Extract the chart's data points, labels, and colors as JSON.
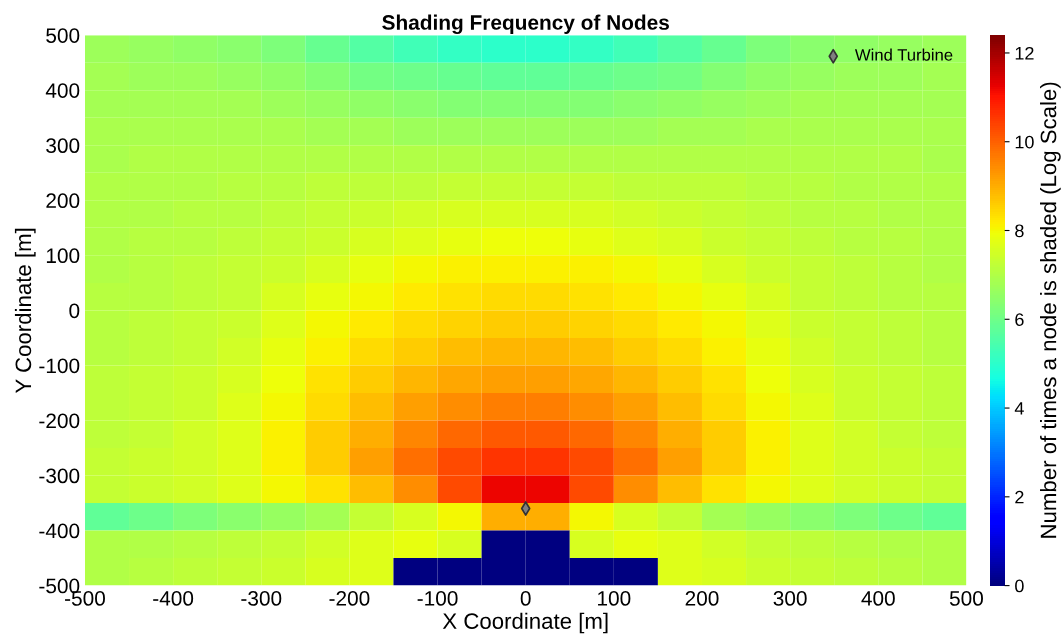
{
  "chart_data": {
    "type": "heatmap",
    "title": "Shading Frequency of Nodes",
    "xlabel": "X Coordinate [m]",
    "ylabel": "Y Coordinate [m]",
    "clabel": "Number of times a node is shaded (Log Scale)",
    "xlim": [
      -500,
      500
    ],
    "ylim": [
      -500,
      500
    ],
    "xticks": [
      -500,
      -400,
      -300,
      -200,
      -100,
      0,
      100,
      200,
      300,
      400,
      500
    ],
    "yticks": [
      -500,
      -400,
      -300,
      -200,
      -100,
      0,
      100,
      200,
      300,
      400,
      500
    ],
    "clim": [
      0,
      12.4
    ],
    "cticks": [
      0,
      2,
      4,
      6,
      8,
      10,
      12
    ],
    "cells": [
      [
        6.7,
        6.6,
        6.5,
        6.4,
        6.2,
        5.9,
        5.6,
        5.3,
        5.1,
        5.0,
        5.0,
        5.1,
        5.3,
        5.6,
        5.9,
        6.2,
        6.4,
        6.5,
        6.6,
        6.7
      ],
      [
        6.8,
        6.7,
        6.7,
        6.6,
        6.5,
        6.3,
        6.1,
        6.0,
        5.9,
        5.8,
        5.8,
        5.9,
        6.0,
        6.1,
        6.3,
        6.5,
        6.6,
        6.7,
        6.7,
        6.8
      ],
      [
        6.8,
        6.8,
        6.8,
        6.8,
        6.7,
        6.6,
        6.5,
        6.4,
        6.3,
        6.3,
        6.3,
        6.3,
        6.4,
        6.5,
        6.6,
        6.7,
        6.8,
        6.8,
        6.8,
        6.8
      ],
      [
        6.9,
        6.9,
        6.9,
        6.9,
        6.9,
        6.8,
        6.8,
        6.7,
        6.7,
        6.7,
        6.7,
        6.7,
        6.7,
        6.8,
        6.8,
        6.9,
        6.9,
        6.9,
        6.9,
        6.9
      ],
      [
        6.9,
        7.0,
        7.0,
        7.0,
        7.0,
        7.0,
        7.0,
        7.0,
        7.0,
        7.0,
        7.0,
        7.0,
        7.0,
        7.0,
        7.0,
        7.0,
        7.0,
        7.0,
        7.0,
        6.9
      ],
      [
        7.0,
        7.0,
        7.0,
        7.1,
        7.1,
        7.2,
        7.2,
        7.2,
        7.3,
        7.3,
        7.3,
        7.3,
        7.2,
        7.2,
        7.2,
        7.1,
        7.1,
        7.0,
        7.0,
        7.0
      ],
      [
        7.0,
        7.0,
        7.1,
        7.1,
        7.2,
        7.3,
        7.4,
        7.5,
        7.6,
        7.6,
        7.6,
        7.6,
        7.5,
        7.4,
        7.3,
        7.2,
        7.1,
        7.1,
        7.0,
        7.0
      ],
      [
        7.0,
        7.1,
        7.1,
        7.2,
        7.3,
        7.4,
        7.6,
        7.7,
        7.8,
        7.9,
        7.9,
        7.8,
        7.7,
        7.6,
        7.4,
        7.3,
        7.2,
        7.1,
        7.1,
        7.0
      ],
      [
        7.0,
        7.1,
        7.2,
        7.3,
        7.4,
        7.6,
        7.8,
        8.0,
        8.1,
        8.1,
        8.1,
        8.1,
        8.0,
        7.8,
        7.6,
        7.4,
        7.3,
        7.2,
        7.1,
        7.0
      ],
      [
        7.1,
        7.1,
        7.2,
        7.3,
        7.6,
        7.8,
        8.0,
        8.2,
        8.3,
        8.4,
        8.4,
        8.3,
        8.2,
        8.0,
        7.8,
        7.6,
        7.3,
        7.2,
        7.1,
        7.1
      ],
      [
        7.1,
        7.2,
        7.3,
        7.4,
        7.7,
        8.0,
        8.2,
        8.4,
        8.5,
        8.6,
        8.6,
        8.5,
        8.4,
        8.2,
        8.0,
        7.7,
        7.4,
        7.3,
        7.2,
        7.1
      ],
      [
        7.1,
        7.2,
        7.3,
        7.5,
        7.8,
        8.1,
        8.4,
        8.6,
        8.8,
        8.9,
        8.9,
        8.8,
        8.6,
        8.4,
        8.1,
        7.8,
        7.5,
        7.3,
        7.2,
        7.1
      ],
      [
        7.2,
        7.3,
        7.4,
        7.6,
        7.9,
        8.3,
        8.6,
        8.9,
        9.1,
        9.2,
        9.2,
        9.1,
        8.9,
        8.6,
        8.3,
        7.9,
        7.6,
        7.4,
        7.3,
        7.2
      ],
      [
        7.2,
        7.3,
        7.4,
        7.7,
        8.0,
        8.4,
        8.8,
        9.2,
        9.4,
        9.6,
        9.6,
        9.4,
        9.2,
        8.8,
        8.4,
        8.0,
        7.7,
        7.4,
        7.3,
        7.2
      ],
      [
        7.2,
        7.3,
        7.5,
        7.7,
        8.1,
        8.6,
        9.0,
        9.5,
        9.9,
        10.1,
        10.1,
        9.9,
        9.5,
        9.0,
        8.6,
        8.1,
        7.7,
        7.5,
        7.3,
        7.2
      ],
      [
        7.3,
        7.4,
        7.5,
        7.7,
        8.1,
        8.6,
        9.2,
        9.8,
        10.3,
        10.6,
        10.6,
        10.3,
        9.8,
        9.2,
        8.6,
        8.1,
        7.7,
        7.5,
        7.4,
        7.3
      ],
      [
        7.3,
        7.4,
        7.5,
        7.7,
        8.0,
        8.3,
        8.8,
        9.4,
        10.3,
        11.2,
        11.2,
        10.3,
        9.4,
        8.8,
        8.3,
        8.0,
        7.7,
        7.5,
        7.4,
        7.3
      ],
      [
        5.8,
        6.0,
        6.2,
        6.4,
        6.6,
        6.8,
        7.3,
        7.6,
        8.0,
        9.0,
        9.0,
        8.0,
        7.6,
        7.3,
        6.8,
        6.6,
        6.4,
        6.2,
        6.0,
        5.8
      ],
      [
        7.0,
        7.0,
        7.1,
        7.2,
        7.3,
        7.5,
        7.7,
        7.8,
        7.6,
        0,
        0,
        7.6,
        7.8,
        7.7,
        7.5,
        7.3,
        7.2,
        7.1,
        7.0,
        7.0
      ],
      [
        7.0,
        7.1,
        7.2,
        7.3,
        7.4,
        7.6,
        7.7,
        0,
        0,
        0,
        0,
        0,
        0,
        7.7,
        7.6,
        7.4,
        7.3,
        7.2,
        7.1,
        7.0
      ]
    ],
    "series": [
      {
        "name": "Wind Turbine",
        "type": "scatter",
        "x": [
          0
        ],
        "values": [
          -360
        ],
        "color": "#808080",
        "marker": "diamond"
      }
    ],
    "legend": "top right"
  }
}
